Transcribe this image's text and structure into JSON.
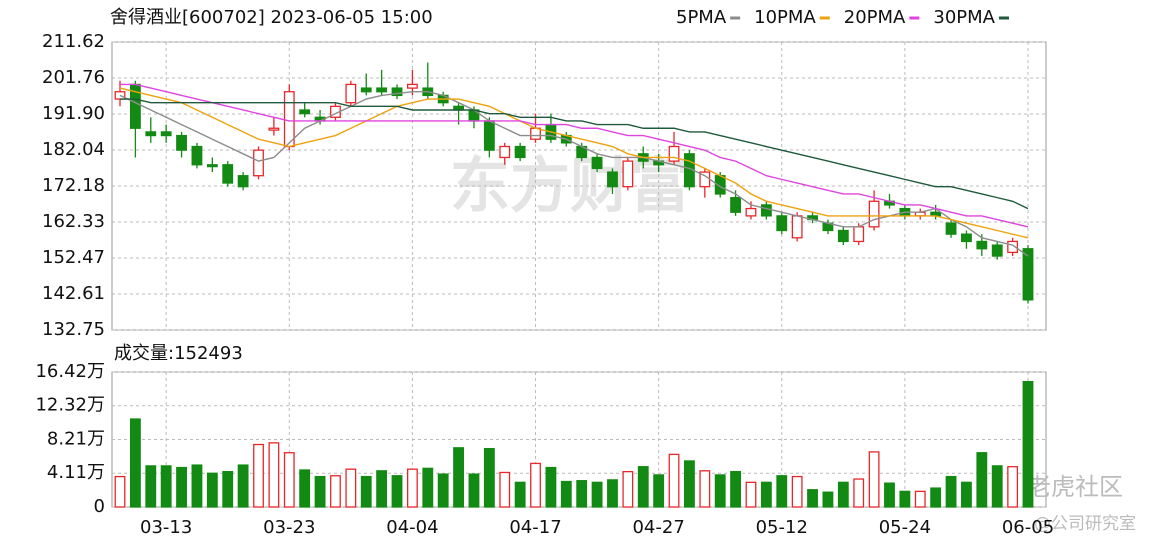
{
  "chart_data": [
    {
      "type": "candlestick",
      "title": "舍得酒业[600702] 2023-06-05 15:00",
      "open": [
        196,
        200,
        187,
        187,
        186,
        183,
        178,
        178,
        175,
        175,
        187.5,
        183,
        193,
        191,
        191,
        195,
        199,
        199,
        199,
        199,
        199,
        197,
        194,
        193,
        190,
        180,
        183,
        185,
        189,
        186,
        183,
        180,
        176,
        172,
        181,
        179,
        179,
        181,
        172,
        175,
        169,
        164,
        167,
        164,
        158,
        164,
        162,
        160,
        157,
        161,
        168,
        166,
        164,
        165,
        162,
        159,
        157,
        156,
        154,
        155
      ],
      "high": [
        201,
        201,
        191,
        189,
        187,
        184,
        180,
        179,
        176,
        183,
        191,
        200,
        195,
        193,
        195,
        201,
        203,
        204,
        200,
        204,
        206,
        198,
        195,
        194,
        191,
        184,
        184,
        192,
        192,
        187,
        184,
        181,
        177,
        180,
        183,
        181,
        187,
        182,
        177,
        176,
        171,
        168,
        168,
        165,
        165,
        165,
        163,
        161,
        162,
        171,
        170,
        167,
        166,
        167,
        163,
        160,
        159,
        157,
        158,
        156
      ],
      "low": [
        194,
        180,
        184,
        184,
        180,
        177,
        176,
        172,
        171,
        174,
        186,
        182,
        191,
        189,
        190,
        194,
        197,
        197,
        196,
        197,
        196,
        194,
        189,
        188,
        180,
        178,
        179,
        184,
        184,
        183,
        179,
        176,
        170,
        171,
        177,
        176,
        178,
        171,
        169,
        169,
        164,
        163,
        163,
        159,
        157,
        162,
        159,
        156,
        156,
        160,
        166,
        163,
        163,
        163,
        158,
        155,
        153,
        152,
        153,
        140
      ],
      "close": [
        198,
        188,
        186,
        186,
        182,
        178,
        177.5,
        173,
        172,
        182,
        188,
        198,
        192,
        190,
        194,
        200,
        198,
        198,
        197,
        200,
        197,
        195,
        193,
        190,
        182,
        183,
        180,
        188,
        185,
        184,
        180,
        177,
        172,
        179,
        179,
        178,
        183,
        172,
        176,
        170,
        165,
        166,
        164,
        160,
        164,
        163,
        160,
        157,
        161,
        168,
        167,
        164,
        165,
        164,
        159,
        157,
        155,
        153,
        157,
        141
      ],
      "up_color": "#e8262a",
      "down_color": "#138a13",
      "series": [
        {
          "name": "5PMA",
          "color": "#8c8c8c",
          "values": [
            197,
            195,
            193,
            191,
            189,
            187,
            185,
            183,
            181,
            179,
            180,
            184,
            188,
            190,
            192,
            194,
            196,
            197,
            197.5,
            198,
            198,
            197,
            195,
            193,
            190,
            188,
            186,
            186,
            186,
            185,
            183,
            181,
            180,
            180,
            180,
            179,
            178,
            177,
            175,
            172,
            170,
            167,
            166,
            165,
            164,
            163,
            162,
            161,
            161,
            163,
            164,
            165,
            165,
            166,
            163,
            161,
            158,
            157,
            156,
            153
          ]
        },
        {
          "name": "10PMA",
          "color": "#eea20e",
          "values": [
            199,
            198,
            197,
            196,
            195,
            193,
            191,
            189,
            187,
            185,
            184,
            183,
            184,
            185,
            186,
            188,
            190,
            192,
            194,
            195,
            196,
            196,
            196,
            195,
            194,
            192,
            190,
            188,
            187,
            186,
            185,
            184,
            183,
            181,
            180,
            180,
            180,
            179,
            177,
            175,
            173,
            170,
            168,
            167,
            166,
            165,
            164,
            164,
            164,
            164,
            164,
            164,
            164,
            164,
            163,
            162,
            161,
            160,
            159,
            158
          ]
        },
        {
          "name": "20PMA",
          "color": "#e044e0",
          "values": [
            200,
            200,
            199,
            198,
            197,
            196,
            195,
            194,
            193,
            192,
            191,
            190,
            190,
            190,
            190,
            190,
            190,
            190,
            190,
            190,
            190,
            190,
            190,
            190,
            190,
            190,
            190,
            189,
            189,
            189,
            188,
            188,
            187,
            186,
            186,
            185,
            184,
            183,
            182,
            180,
            179,
            177,
            175,
            174,
            173,
            172,
            171,
            170,
            170,
            169,
            168,
            167,
            167,
            166,
            165,
            164,
            164,
            163,
            162,
            161
          ]
        },
        {
          "name": "30PMA",
          "color": "#1f5a3c",
          "values": [
            196,
            196,
            195,
            195,
            195,
            195,
            195,
            195,
            195,
            195,
            195,
            195,
            195,
            195,
            195,
            194,
            194,
            194,
            194,
            193,
            193,
            193,
            193,
            193,
            192,
            192,
            191,
            191,
            191,
            190,
            190,
            189,
            189,
            189,
            188,
            188,
            188,
            187,
            187,
            186,
            185,
            184,
            183,
            182,
            181,
            180,
            179,
            178,
            177,
            176,
            175,
            174,
            173,
            172,
            172,
            171,
            170,
            169,
            168,
            166
          ]
        }
      ],
      "ylim": [
        132.75,
        211.62
      ],
      "yticks": [
        211.62,
        201.76,
        {
          "value": 191.9,
          "label": "191.90"
        },
        182.04,
        172.18,
        162.33,
        152.47,
        142.61,
        132.75
      ],
      "grid": true
    },
    {
      "type": "bar",
      "title": "成交量:152493",
      "categories": [
        null,
        null,
        null,
        "03-13",
        null,
        null,
        null,
        null,
        null,
        null,
        null,
        "03-23",
        null,
        null,
        null,
        null,
        null,
        null,
        null,
        "04-04",
        null,
        null,
        null,
        null,
        null,
        null,
        null,
        "04-17",
        null,
        null,
        null,
        null,
        null,
        null,
        null,
        "04-27",
        null,
        null,
        null,
        null,
        null,
        null,
        null,
        "05-12",
        null,
        null,
        null,
        null,
        null,
        null,
        null,
        "05-24",
        null,
        null,
        null,
        null,
        null,
        null,
        null,
        "06-05"
      ],
      "values": [
        3.7,
        10.7,
        5.0,
        5.0,
        4.8,
        5.1,
        4.1,
        4.3,
        5.1,
        7.6,
        7.8,
        6.6,
        4.5,
        3.7,
        3.8,
        4.6,
        3.7,
        4.4,
        3.8,
        4.6,
        4.7,
        4.0,
        7.2,
        4.0,
        7.1,
        4.2,
        3.0,
        5.3,
        4.8,
        3.1,
        3.2,
        3.0,
        3.3,
        4.3,
        4.9,
        3.9,
        6.4,
        5.6,
        4.4,
        3.9,
        4.3,
        3.0,
        3.0,
        3.8,
        3.7,
        2.1,
        1.8,
        3.0,
        3.4,
        6.7,
        2.9,
        1.9,
        1.9,
        2.3,
        3.7,
        3.0,
        6.6,
        5.0,
        4.9,
        15.25
      ],
      "ylim": [
        0,
        16.42
      ],
      "yticks": [
        {
          "value": 16.42,
          "label": "16.42万"
        },
        {
          "value": 12.32,
          "label": "12.32万"
        },
        {
          "value": 8.21,
          "label": "8.21万"
        },
        {
          "value": 4.11,
          "label": "4.11万"
        },
        0
      ],
      "grid": true
    }
  ],
  "watermarks": [
    "东方财富",
    "老虎社区",
    "@公司研究室"
  ]
}
